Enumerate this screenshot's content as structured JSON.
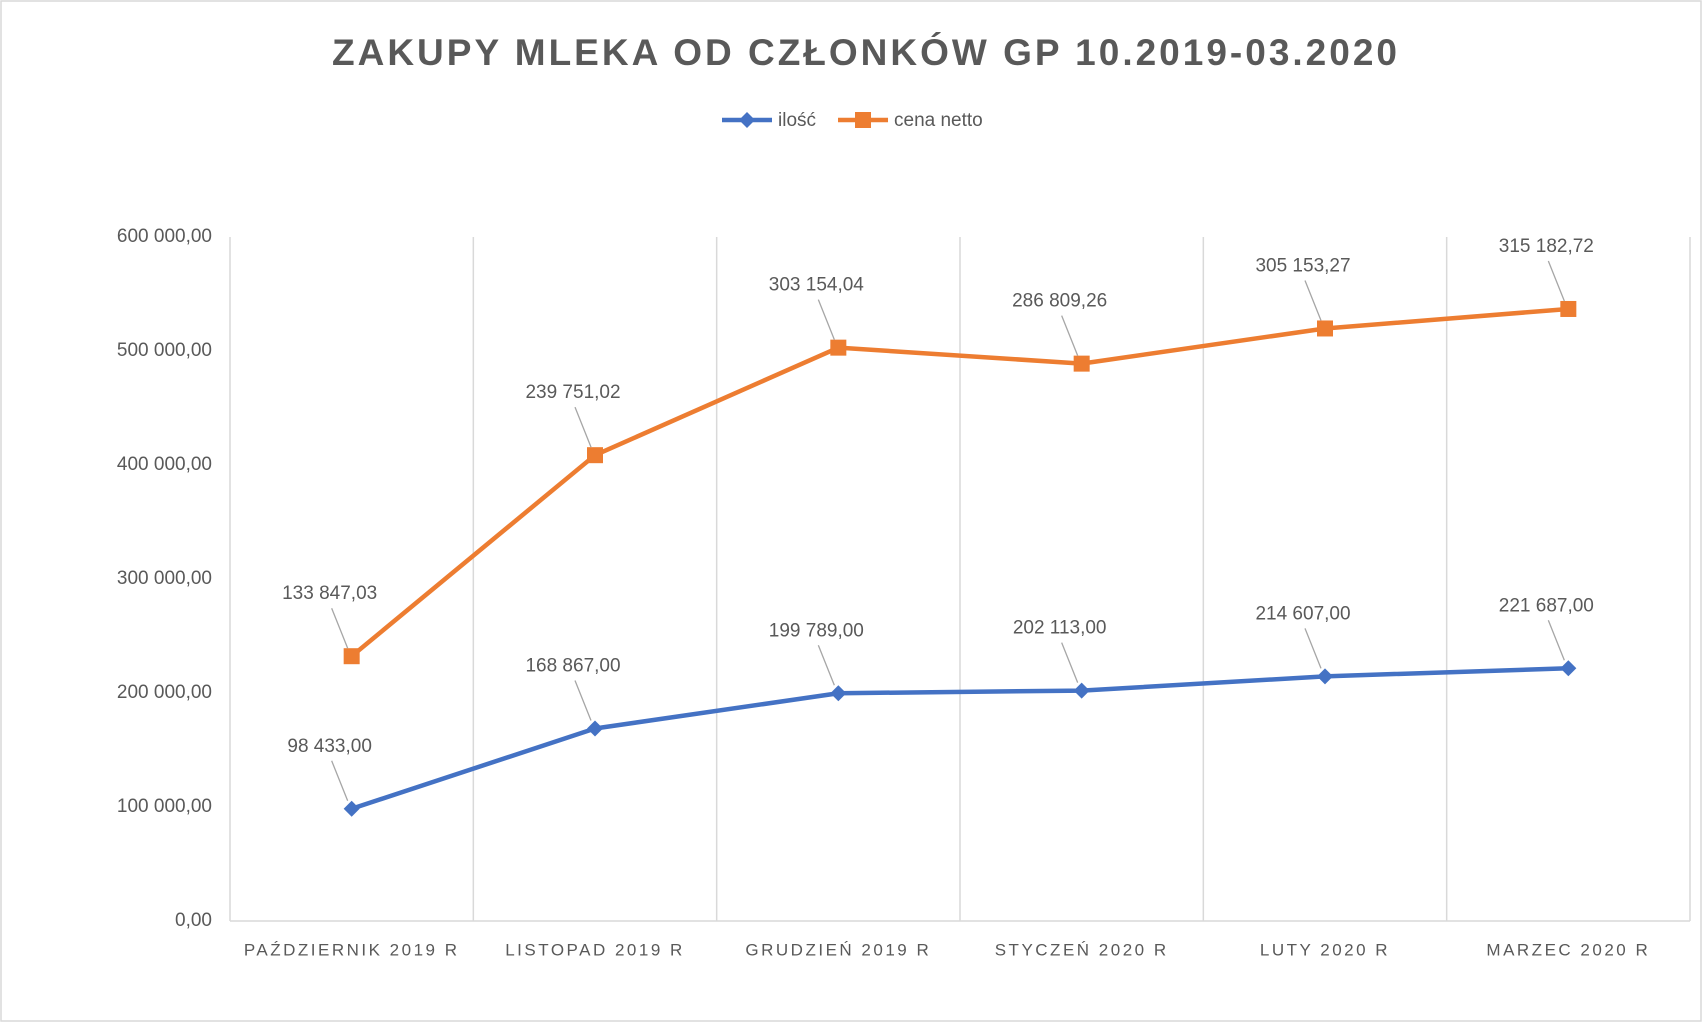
{
  "chart_data": {
    "type": "line",
    "title": "ZAKUPY MLEKA OD CZŁONKÓW GP 10.2019-03.2020",
    "categories": [
      "PAŹDZIERNIK 2019 R",
      "LISTOPAD 2019 R",
      "GRUDZIEŃ 2019 R",
      "STYCZEŃ 2020 R",
      "LUTY 2020 R",
      "MARZEC 2020 R"
    ],
    "stacked": true,
    "series": [
      {
        "name": "ilość",
        "color": "#4472c4",
        "marker": "diamond",
        "values": [
          98433,
          168867,
          199789,
          202113,
          214607,
          221687
        ],
        "value_labels": [
          "98 433,00",
          "168 867,00",
          "199 789,00",
          "202 113,00",
          "214 607,00",
          "221 687,00"
        ]
      },
      {
        "name": "cena netto",
        "color": "#ed7d31",
        "marker": "square",
        "values": [
          133847.03,
          239751.02,
          303154.04,
          286809.26,
          305153.27,
          315182.72
        ],
        "value_labels": [
          "133 847,03",
          "239 751,02",
          "303 154,04",
          "286 809,26",
          "305 153,27",
          "315 182,72"
        ]
      }
    ],
    "ylim": [
      0,
      600000
    ],
    "yticks": [
      {
        "value": 0,
        "label": "0,00"
      },
      {
        "value": 100000,
        "label": "100 000,00"
      },
      {
        "value": 200000,
        "label": "200 000,00"
      },
      {
        "value": 300000,
        "label": "300 000,00"
      },
      {
        "value": 400000,
        "label": "400 000,00"
      },
      {
        "value": 500000,
        "label": "500 000,00"
      },
      {
        "value": 600000,
        "label": "600 000,00"
      }
    ],
    "grid": "vertical",
    "legend": "top"
  }
}
